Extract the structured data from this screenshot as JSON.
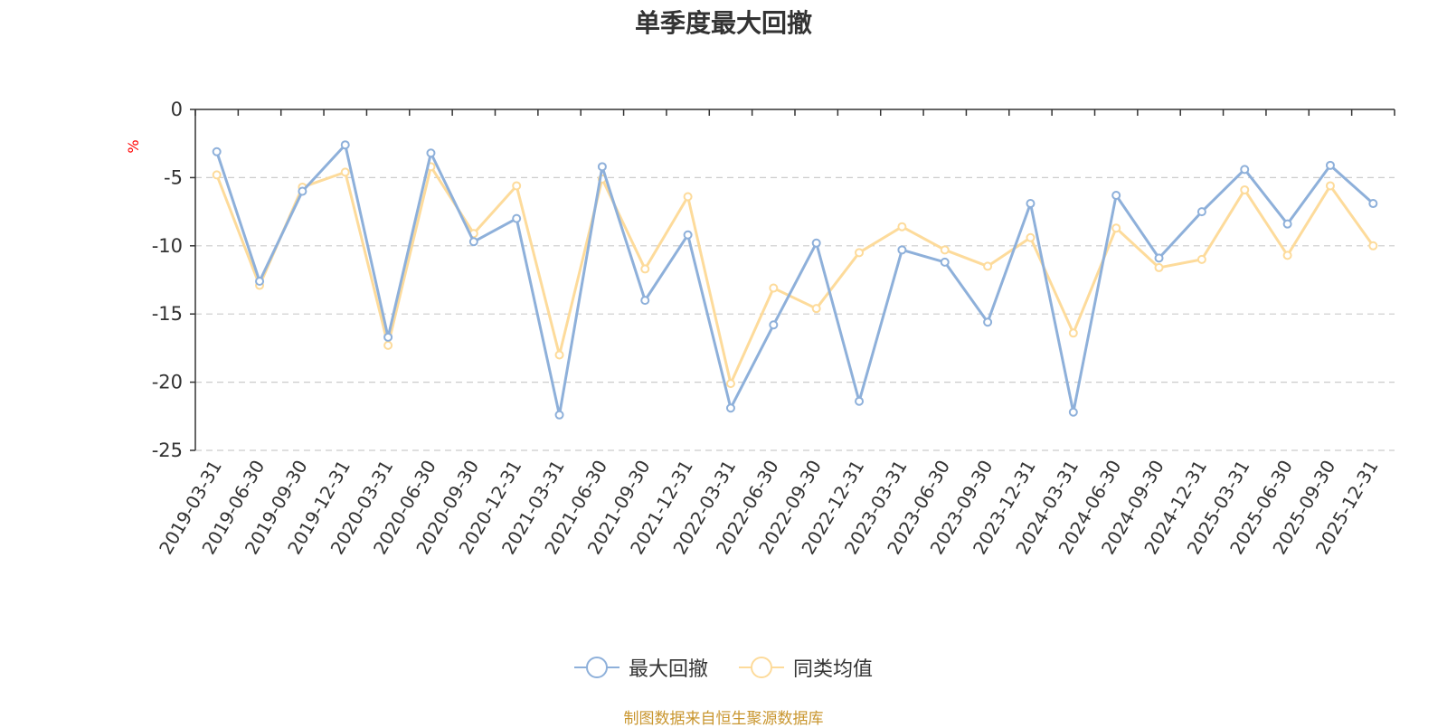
{
  "chart_data": {
    "type": "line",
    "title": "单季度最大回撤",
    "ylabel": "%",
    "xlabel": "",
    "ylim": [
      -25,
      0
    ],
    "yticks": [
      0,
      -5,
      -10,
      -15,
      -20,
      -25
    ],
    "grid": true,
    "legend_position": "bottom-center",
    "categories": [
      "2019-03-31",
      "2019-06-30",
      "2019-09-30",
      "2019-12-31",
      "2020-03-31",
      "2020-06-30",
      "2020-09-30",
      "2020-12-31",
      "2021-03-31",
      "2021-06-30",
      "2021-09-30",
      "2021-12-31",
      "2022-03-31",
      "2022-06-30",
      "2022-09-30",
      "2022-12-31",
      "2023-03-31",
      "2023-06-30",
      "2023-09-30",
      "2023-12-31",
      "2024-03-31",
      "2024-06-30",
      "2024-09-30",
      "2024-12-31",
      "2025-03-31",
      "2025-06-30",
      "2025-09-30",
      "2025-12-31"
    ],
    "series": [
      {
        "name": "最大回撤",
        "color": "#8eb0da",
        "values": [
          -3.1,
          -12.6,
          -6.0,
          -2.6,
          -16.7,
          -3.2,
          -9.7,
          -8.0,
          -22.4,
          -4.2,
          -14.0,
          -9.2,
          -21.9,
          -15.8,
          -9.8,
          -21.4,
          -10.3,
          -11.2,
          -15.6,
          -6.9,
          -22.2,
          -6.3,
          -10.9,
          -7.5,
          -4.4,
          -8.4,
          -4.1,
          -6.9
        ]
      },
      {
        "name": "同类均值",
        "color": "#fddb9b",
        "values": [
          -4.8,
          -12.9,
          -5.7,
          -4.6,
          -17.3,
          -4.2,
          -9.1,
          -5.6,
          -18.0,
          -5.1,
          -11.7,
          -6.4,
          -20.1,
          -13.1,
          -14.6,
          -10.5,
          -8.6,
          -10.3,
          -11.5,
          -9.4,
          -16.4,
          -8.7,
          -11.6,
          -11.0,
          -5.9,
          -10.7,
          -5.6,
          -10.0
        ]
      }
    ]
  },
  "source_text": "制图数据来自恒生聚源数据库"
}
